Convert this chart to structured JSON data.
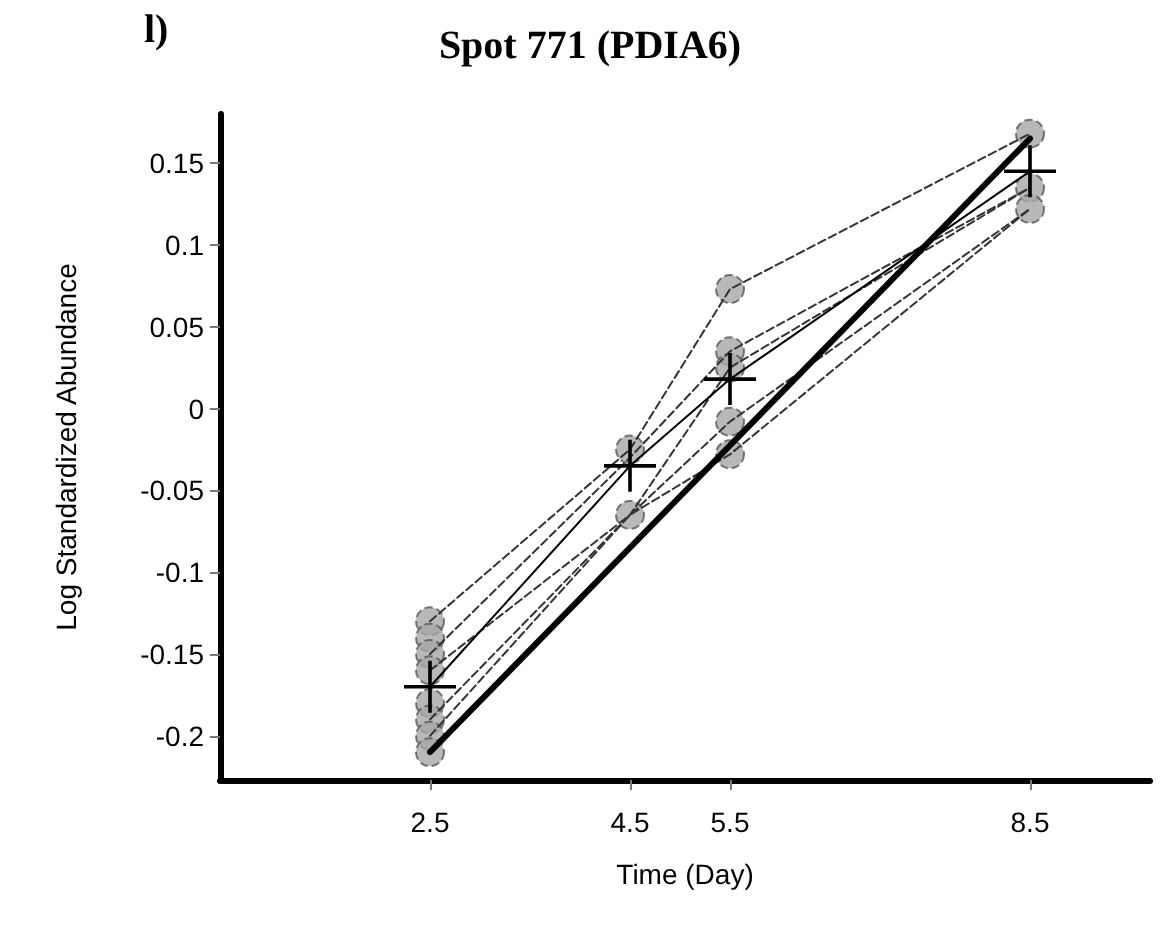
{
  "chart_data": {
    "type": "scatter",
    "title": "Spot 771 (PDIA6)",
    "xlabel": "Time (Day)",
    "ylabel": "Log Standardized Abundance",
    "annotations": [
      "l)"
    ],
    "xlim": [
      0.4,
      9.7
    ],
    "ylim": [
      -0.227,
      0.18
    ],
    "xticks": [
      2.5,
      4.5,
      5.5,
      8.5
    ],
    "yticks": [
      -0.2,
      -0.15,
      -0.1,
      -0.05,
      0,
      0.05,
      0.1,
      0.15
    ],
    "grid": false,
    "series": [
      {
        "type": "line",
        "line_style": "dashed",
        "marker": "none",
        "color": "#333333",
        "x": [
          2.5,
          4.5,
          5.5,
          8.5
        ],
        "values": [
          -0.13,
          -0.025,
          0.073,
          0.168
        ]
      },
      {
        "type": "line",
        "line_style": "dashed",
        "marker": "none",
        "color": "#333333",
        "x": [
          2.5,
          4.5,
          5.5,
          8.5
        ],
        "values": [
          -0.15,
          -0.03,
          0.035,
          0.135
        ]
      },
      {
        "type": "line",
        "line_style": "dashed",
        "marker": "none",
        "color": "#333333",
        "x": [
          2.5,
          4.5,
          5.5,
          8.5
        ],
        "values": [
          -0.16,
          -0.065,
          0.025,
          0.135
        ]
      },
      {
        "type": "line",
        "line_style": "dashed",
        "marker": "none",
        "color": "#333333",
        "x": [
          2.5,
          4.5,
          5.5,
          8.5
        ],
        "values": [
          -0.19,
          -0.065,
          -0.008,
          0.122
        ]
      },
      {
        "type": "line",
        "line_style": "dashed",
        "marker": "none",
        "color": "#333333",
        "x": [
          2.5,
          4.5,
          5.5,
          8.5
        ],
        "values": [
          -0.2,
          -0.065,
          -0.028,
          0.122
        ]
      },
      {
        "marker": "circle",
        "color": "#a6a6a6",
        "x": [
          2.5,
          2.5,
          2.5,
          2.5,
          2.5,
          2.5,
          2.5,
          2.5,
          4.5,
          4.5,
          5.5,
          5.5,
          5.5,
          5.5,
          5.5,
          8.5,
          8.5,
          8.5
        ],
        "values": [
          -0.13,
          -0.14,
          -0.15,
          -0.16,
          -0.18,
          -0.19,
          -0.2,
          -0.21,
          -0.025,
          -0.065,
          0.073,
          0.035,
          0.025,
          -0.008,
          -0.028,
          0.168,
          0.135,
          0.122
        ]
      },
      {
        "type": "line",
        "line_style": "solid",
        "marker": "cross",
        "color": "#000000",
        "x": [
          2.5,
          4.5,
          5.5,
          8.5
        ],
        "values": [
          -0.17,
          -0.035,
          0.018,
          0.145
        ]
      },
      {
        "type": "line",
        "line_style": "solid",
        "marker": "none",
        "color": "#000000",
        "x": [
          2.5,
          8.5
        ],
        "values": [
          -0.21,
          0.165
        ]
      }
    ]
  }
}
